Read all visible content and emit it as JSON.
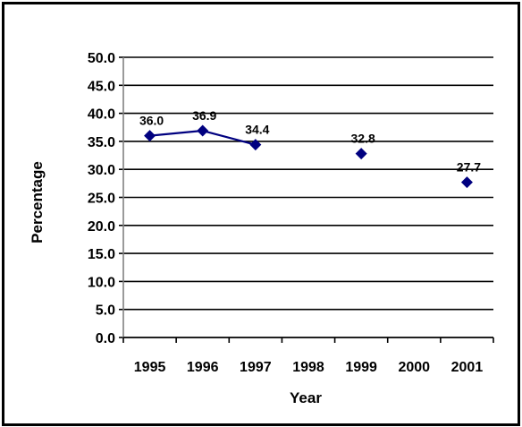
{
  "chart_data": {
    "type": "line",
    "title": "",
    "xlabel": "Year",
    "ylabel": "Percentage",
    "categories": [
      "1995",
      "1996",
      "1997",
      "1998",
      "1999",
      "2000",
      "2001"
    ],
    "series": [
      {
        "values": [
          36.0,
          36.9,
          34.4,
          null,
          32.8,
          null,
          27.7
        ],
        "labels": [
          "36.0",
          "36.9",
          "34.4",
          "",
          "32.8",
          "",
          "27.7"
        ],
        "color": "#000080"
      }
    ],
    "ylim": [
      0,
      50
    ],
    "yticks": [
      "0.0",
      "5.0",
      "10.0",
      "15.0",
      "20.0",
      "25.0",
      "30.0",
      "35.0",
      "40.0",
      "45.0",
      "50.0"
    ],
    "grid": true,
    "legend": "none"
  }
}
